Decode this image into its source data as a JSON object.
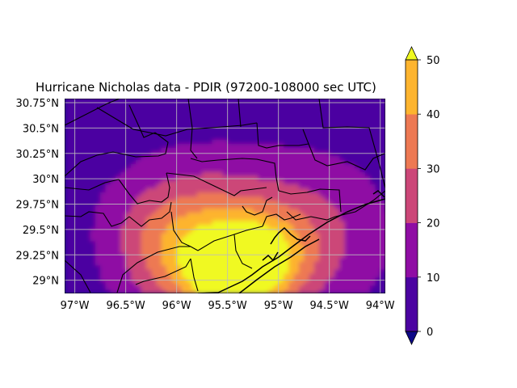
{
  "title": "Hurricane Nicholas data - PDIR (97200-108000 sec UTC)",
  "map": {
    "lon_range": [
      -97.1,
      -93.95
    ],
    "lat_range": [
      28.87,
      30.79
    ],
    "lon_ticks": [
      {
        "value": -97.0,
        "label": "97°W"
      },
      {
        "value": -96.5,
        "label": "96.5°W"
      },
      {
        "value": -96.0,
        "label": "96°W"
      },
      {
        "value": -95.5,
        "label": "95.5°W"
      },
      {
        "value": -95.0,
        "label": "95°W"
      },
      {
        "value": -94.5,
        "label": "94.5°W"
      },
      {
        "value": -94.0,
        "label": "94°W"
      }
    ],
    "lat_ticks": [
      {
        "value": 29.0,
        "label": "29°N"
      },
      {
        "value": 29.25,
        "label": "29.25°N"
      },
      {
        "value": 29.5,
        "label": "29.5°N"
      },
      {
        "value": 29.75,
        "label": "29.75°N"
      },
      {
        "value": 30.0,
        "label": "30°N"
      },
      {
        "value": 30.25,
        "label": "30.25°N"
      },
      {
        "value": 30.5,
        "label": "30.5°N"
      },
      {
        "value": 30.75,
        "label": "30.75°N"
      }
    ],
    "gridlines": true,
    "colormap": "plasma",
    "precip_cores": [
      {
        "lon": -95.45,
        "lat": 29.05,
        "value": 42,
        "spread": 0.28
      },
      {
        "lon": -95.15,
        "lat": 29.2,
        "value": 30,
        "spread": 0.32
      },
      {
        "lon": -95.9,
        "lat": 29.15,
        "value": 24,
        "spread": 0.4
      },
      {
        "lon": -94.7,
        "lat": 29.45,
        "value": 18,
        "spread": 0.5
      },
      {
        "lon": -95.6,
        "lat": 29.6,
        "value": 16,
        "spread": 0.45
      },
      {
        "lon": -96.2,
        "lat": 29.55,
        "value": 12,
        "spread": 0.4
      }
    ]
  },
  "colorbar": {
    "levels": [
      0,
      10,
      20,
      30,
      40,
      50
    ],
    "tick_labels": [
      "0",
      "10",
      "20",
      "30",
      "40",
      "50"
    ],
    "band_colors": [
      "#4b03a1",
      "#8f0da4",
      "#cc4778",
      "#ed7953",
      "#fdb42f"
    ],
    "under_color": "#0d0887",
    "over_color": "#f0f921",
    "extend": "both"
  }
}
